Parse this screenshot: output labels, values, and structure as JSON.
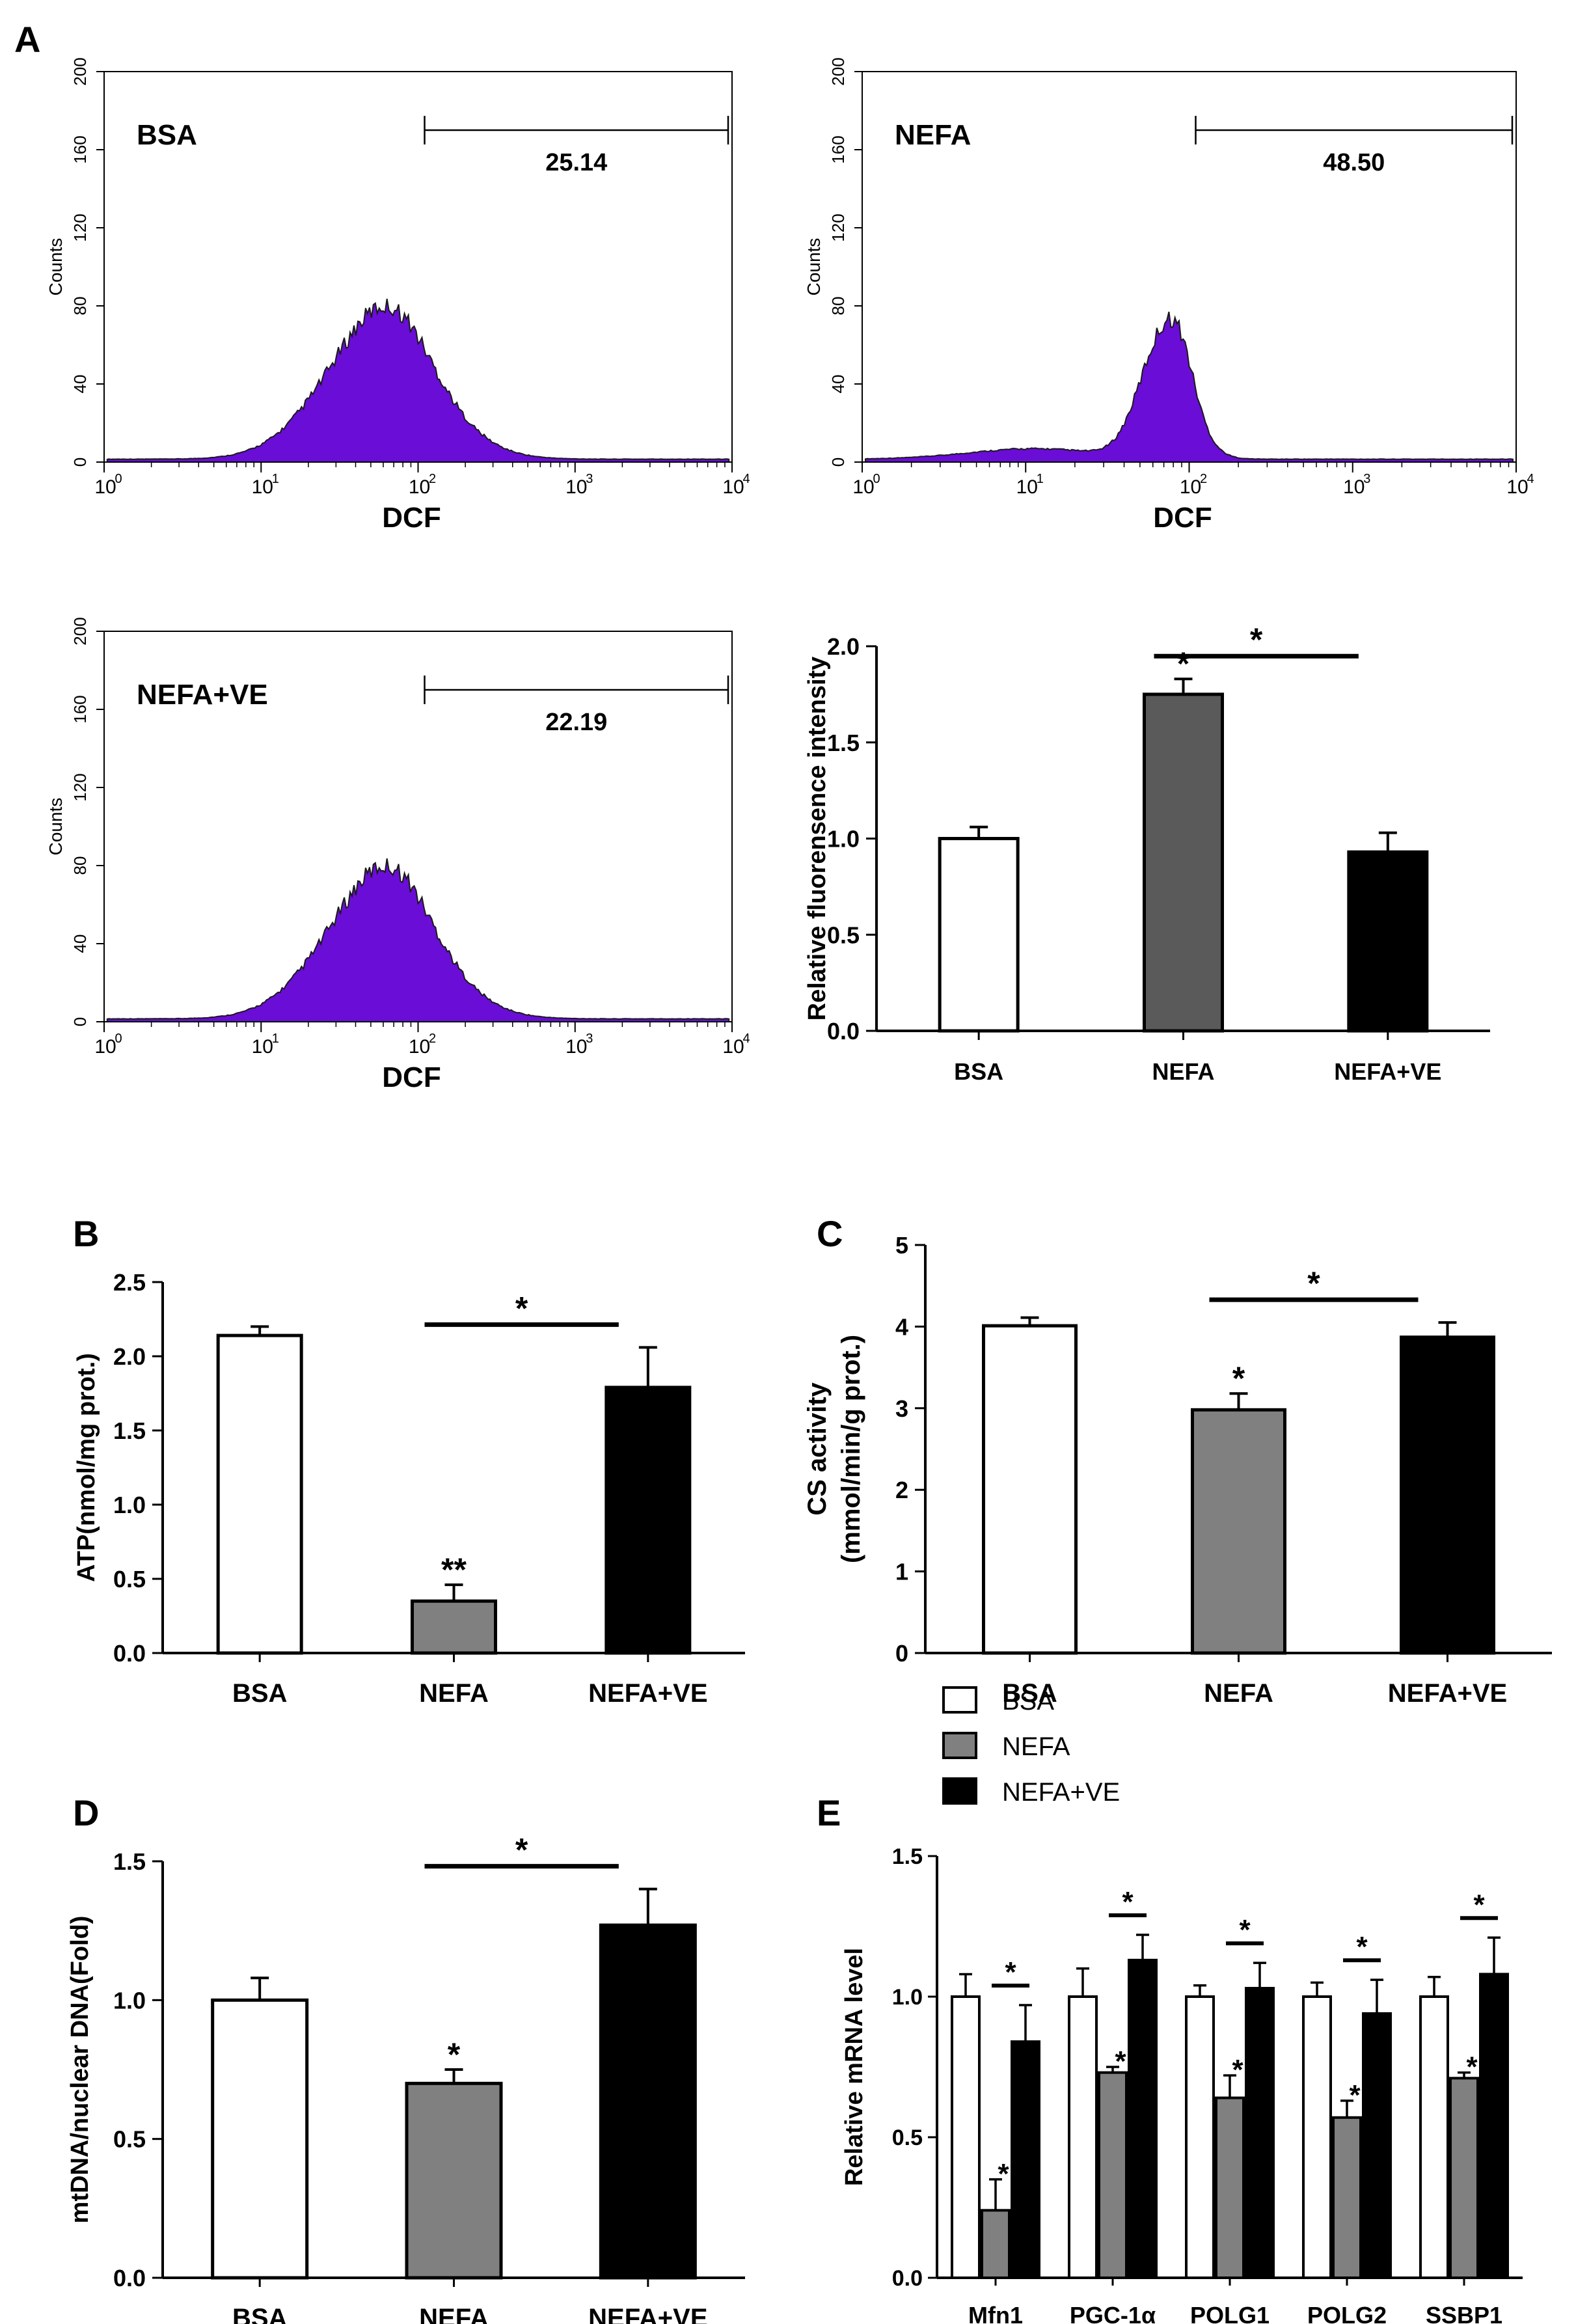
{
  "panel_labels": {
    "A": "A",
    "B": "B",
    "C": "C",
    "D": "D",
    "E": "E"
  },
  "colors": {
    "histogram_fill": "#6a0dd6",
    "histogram_edge": "#1a1a1a",
    "white_bar": "#ffffff",
    "dark_gray_bar": "#5a5a5a",
    "gray_bar": "#808080",
    "black_bar": "#000000"
  },
  "chart_data": [
    {
      "id": "A-BSA",
      "type": "area",
      "title": "BSA",
      "xlabel": "DCF",
      "ylabel": "Counts",
      "x_scale": "log",
      "xlim": [
        1,
        10000
      ],
      "ylim": [
        0,
        200
      ],
      "x_tick_labels": [
        "10",
        "10",
        "10",
        "10",
        "10"
      ],
      "x_tick_exponents": [
        "0",
        "1",
        "2",
        "3",
        "4"
      ],
      "y_ticks": [
        "0",
        "40",
        "80",
        "120",
        "160",
        "200"
      ],
      "gate": {
        "from": 100,
        "to": 10000,
        "value": "25.14"
      },
      "peak_log_x": 1.75,
      "peak_count": 75,
      "spread": 0.36
    },
    {
      "id": "A-NEFA",
      "type": "area",
      "title": "NEFA",
      "xlabel": "DCF",
      "ylabel": "Counts",
      "x_scale": "log",
      "xlim": [
        1,
        10000
      ],
      "ylim": [
        0,
        200
      ],
      "x_tick_labels": [
        "10",
        "10",
        "10",
        "10",
        "10"
      ],
      "x_tick_exponents": [
        "0",
        "1",
        "2",
        "3",
        "4"
      ],
      "y_ticks": [
        "0",
        "40",
        "80",
        "120",
        "160",
        "200"
      ],
      "gate": {
        "from": 100,
        "to": 10000,
        "value": "48.50"
      },
      "peak_log_x": 1.85,
      "peak_count": 72,
      "spread": 0.15
    },
    {
      "id": "A-NEFA+VE",
      "type": "area",
      "title": "NEFA+VE",
      "xlabel": "DCF",
      "ylabel": "Counts",
      "x_scale": "log",
      "xlim": [
        1,
        10000
      ],
      "ylim": [
        0,
        200
      ],
      "x_tick_labels": [
        "10",
        "10",
        "10",
        "10",
        "10"
      ],
      "x_tick_exponents": [
        "0",
        "1",
        "2",
        "3",
        "4"
      ],
      "y_ticks": [
        "0",
        "40",
        "80",
        "120",
        "160",
        "200"
      ],
      "gate": {
        "from": 100,
        "to": 10000,
        "value": "22.19"
      },
      "peak_log_x": 1.75,
      "peak_count": 75,
      "spread": 0.36
    },
    {
      "id": "A-bar",
      "type": "bar",
      "categories": [
        "BSA",
        "NEFA",
        "NEFA+VE"
      ],
      "values": [
        1.0,
        1.75,
        0.93
      ],
      "errors": [
        0.06,
        0.08,
        0.1
      ],
      "bar_colors": [
        "#ffffff",
        "#5a5a5a",
        "#000000"
      ],
      "ylabel": "Relative fluorensence intensity",
      "ylim": [
        0,
        2.0
      ],
      "y_ticks": [
        "0.0",
        "0.5",
        "1.0",
        "1.5",
        "2.0"
      ],
      "marks": [
        "",
        "*",
        ""
      ],
      "bracket": {
        "from": 1,
        "to": 2,
        "label": "*"
      }
    },
    {
      "id": "B",
      "type": "bar",
      "categories": [
        "BSA",
        "NEFA",
        "NEFA+VE"
      ],
      "values": [
        2.14,
        0.35,
        1.79
      ],
      "errors": [
        0.06,
        0.11,
        0.27
      ],
      "bar_colors": [
        "#ffffff",
        "#808080",
        "#000000"
      ],
      "ylabel": "ATP(nmol/mg prot.)",
      "ylim": [
        0,
        2.5
      ],
      "y_ticks": [
        "0.0",
        "0.5",
        "1.0",
        "1.5",
        "2.0",
        "2.5"
      ],
      "marks": [
        "",
        "**",
        ""
      ],
      "bracket": {
        "from": 1,
        "to": 2,
        "label": "*"
      }
    },
    {
      "id": "C",
      "type": "bar",
      "categories": [
        "BSA",
        "NEFA",
        "NEFA+VE"
      ],
      "values": [
        4.01,
        2.98,
        3.87
      ],
      "errors": [
        0.1,
        0.2,
        0.18
      ],
      "bar_colors": [
        "#ffffff",
        "#808080",
        "#000000"
      ],
      "ylabel_lines": [
        "CS activity",
        "(mmol/min/g prot.)"
      ],
      "ylim": [
        0,
        5
      ],
      "y_ticks": [
        "0",
        "1",
        "2",
        "3",
        "4",
        "5"
      ],
      "marks": [
        "",
        "*",
        ""
      ],
      "bracket": {
        "from": 1,
        "to": 2,
        "label": "*"
      }
    },
    {
      "id": "D",
      "type": "bar",
      "categories": [
        "BSA",
        "NEFA",
        "NEFA+VE"
      ],
      "values": [
        1.0,
        0.7,
        1.27
      ],
      "errors": [
        0.08,
        0.05,
        0.13
      ],
      "bar_colors": [
        "#ffffff",
        "#808080",
        "#000000"
      ],
      "ylabel": "mtDNA/nuclear DNA(Fold)",
      "ylim": [
        0,
        1.5
      ],
      "y_ticks": [
        "0.0",
        "0.5",
        "1.0",
        "1.5"
      ],
      "marks": [
        "",
        "*",
        ""
      ],
      "bracket": {
        "from": 1,
        "to": 2,
        "label": "*"
      }
    },
    {
      "id": "E",
      "type": "bar",
      "categories": [
        "Mfn1",
        "PGC-1α",
        "POLG1",
        "POLG2",
        "SSBP1"
      ],
      "series": [
        {
          "name": "BSA",
          "color": "#ffffff",
          "values": [
            1.0,
            1.0,
            1.0,
            1.0,
            1.0
          ],
          "errors": [
            0.08,
            0.1,
            0.04,
            0.05,
            0.07
          ]
        },
        {
          "name": "NEFA",
          "color": "#808080",
          "values": [
            0.24,
            0.73,
            0.64,
            0.57,
            0.71
          ],
          "errors": [
            0.11,
            0.02,
            0.08,
            0.06,
            0.02
          ]
        },
        {
          "name": "NEFA+VE",
          "color": "#000000",
          "values": [
            0.84,
            1.13,
            1.03,
            0.94,
            1.08
          ],
          "errors": [
            0.13,
            0.09,
            0.09,
            0.12,
            0.13
          ]
        }
      ],
      "nefa_marks": [
        "*",
        "*",
        "*",
        "*",
        "*"
      ],
      "pair_marks": [
        "*",
        "*",
        "*",
        "*",
        "*"
      ],
      "ylabel": "Relative mRNA level",
      "ylim": [
        0,
        1.5
      ],
      "y_ticks": [
        "0.0",
        "0.5",
        "1.0",
        "1.5"
      ],
      "legend": [
        "BSA",
        "NEFA",
        "NEFA+VE"
      ]
    }
  ]
}
